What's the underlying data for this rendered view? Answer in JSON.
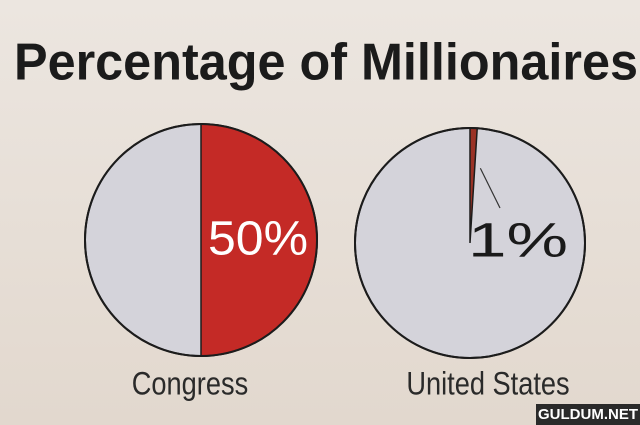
{
  "title": "Percentage of Millionaires",
  "chart_data": [
    {
      "type": "pie",
      "label": "Congress",
      "values": [
        50
      ],
      "value_labels": [
        "50%"
      ],
      "color": "#c42a26",
      "rest_color": "#d4d3da",
      "label_color": "#ffffff",
      "leader_line": false
    },
    {
      "type": "pie",
      "label": "United States",
      "values": [
        1
      ],
      "value_labels": [
        "1%"
      ],
      "color": "#9a3226",
      "rest_color": "#d4d3da",
      "label_color": "#1a1a1a",
      "leader_line": true
    }
  ],
  "watermark": "GULDUM.NET"
}
